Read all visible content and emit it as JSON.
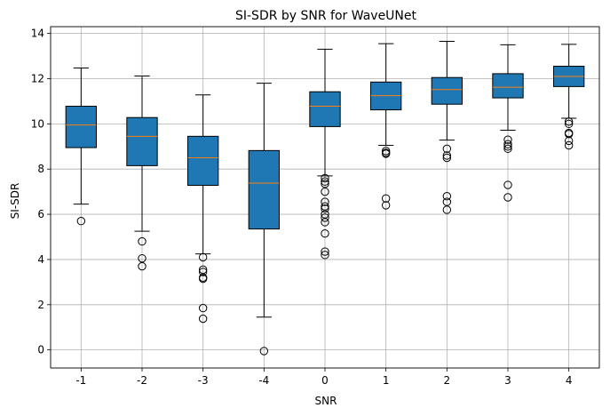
{
  "chart_data": {
    "type": "box",
    "title": "SI-SDR by SNR for WaveUNet",
    "xlabel": "SNR",
    "ylabel": "SI-SDR",
    "ylim": [
      -0.8,
      14.3
    ],
    "yticks": [
      0,
      2,
      4,
      6,
      8,
      10,
      12,
      14
    ],
    "grid": true,
    "box_color": "#1f77b4",
    "median_color": "#ff7f0e",
    "categories": [
      "-1",
      "-2",
      "-3",
      "-4",
      "0",
      "1",
      "2",
      "3",
      "4"
    ],
    "boxes": [
      {
        "label": "-1",
        "whislo": 6.45,
        "q1": 8.95,
        "med": 9.95,
        "q3": 10.78,
        "whishi": 12.47,
        "fliers": [
          5.7
        ]
      },
      {
        "label": "-2",
        "whislo": 5.25,
        "q1": 8.15,
        "med": 9.45,
        "q3": 10.28,
        "whishi": 12.12,
        "fliers": [
          4.8,
          4.05,
          3.7
        ]
      },
      {
        "label": "-3",
        "whislo": 4.25,
        "q1": 7.28,
        "med": 8.5,
        "q3": 9.45,
        "whishi": 11.28,
        "fliers": [
          4.1,
          3.55,
          3.45,
          3.2,
          3.15,
          1.85,
          1.38
        ]
      },
      {
        "label": "-4",
        "whislo": 1.45,
        "q1": 5.35,
        "med": 7.38,
        "q3": 8.82,
        "whishi": 11.8,
        "fliers": [
          -0.05
        ]
      },
      {
        "label": "0",
        "whislo": 7.7,
        "q1": 9.88,
        "med": 10.78,
        "q3": 11.42,
        "whishi": 13.3,
        "fliers": [
          7.6,
          7.45,
          7.35,
          7.0,
          6.55,
          6.35,
          6.25,
          6.0,
          5.85,
          5.65,
          5.15,
          4.35,
          4.2
        ]
      },
      {
        "label": "1",
        "whislo": 9.05,
        "q1": 10.62,
        "med": 11.25,
        "q3": 11.85,
        "whishi": 13.55,
        "fliers": [
          8.8,
          8.72,
          8.68,
          6.7,
          6.4
        ]
      },
      {
        "label": "2",
        "whislo": 9.28,
        "q1": 10.87,
        "med": 11.52,
        "q3": 12.05,
        "whishi": 13.65,
        "fliers": [
          8.9,
          8.6,
          8.5,
          6.8,
          6.55,
          6.2
        ]
      },
      {
        "label": "3",
        "whislo": 9.72,
        "q1": 11.15,
        "med": 11.62,
        "q3": 12.22,
        "whishi": 13.5,
        "fliers": [
          9.3,
          9.1,
          9.0,
          8.9,
          7.3,
          6.75
        ]
      },
      {
        "label": "4",
        "whislo": 10.25,
        "q1": 11.65,
        "med": 12.1,
        "q3": 12.55,
        "whishi": 13.52,
        "fliers": [
          10.1,
          10.0,
          9.6,
          9.55,
          9.25,
          9.05
        ]
      }
    ]
  }
}
